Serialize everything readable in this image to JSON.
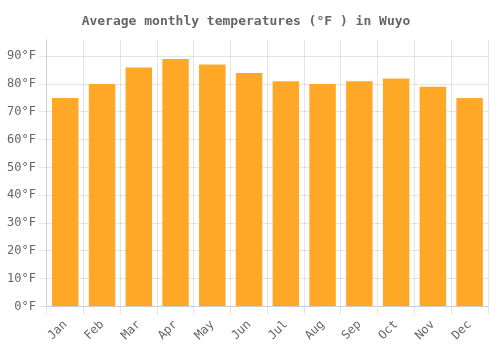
{
  "chart_data": {
    "type": "bar",
    "title": "Average monthly temperatures (°F ) in Wuyo",
    "categories": [
      "Jan",
      "Feb",
      "Mar",
      "Apr",
      "May",
      "Jun",
      "Jul",
      "Aug",
      "Sep",
      "Oct",
      "Nov",
      "Dec"
    ],
    "values": [
      75,
      80,
      86,
      89,
      87,
      84,
      81,
      80,
      81,
      82,
      79,
      75
    ],
    "color": "#FFA726",
    "ylim": [
      0,
      96
    ],
    "yticks": [
      {
        "value": 0,
        "label": "0°F"
      },
      {
        "value": 10,
        "label": "10°F"
      },
      {
        "value": 20,
        "label": "20°F"
      },
      {
        "value": 30,
        "label": "30°F"
      },
      {
        "value": 40,
        "label": "40°F"
      },
      {
        "value": 50,
        "label": "50°F"
      },
      {
        "value": 60,
        "label": "60°F"
      },
      {
        "value": 70,
        "label": "70°F"
      },
      {
        "value": 80,
        "label": "80°F"
      },
      {
        "value": 90,
        "label": "90°F"
      }
    ],
    "grid": true
  }
}
